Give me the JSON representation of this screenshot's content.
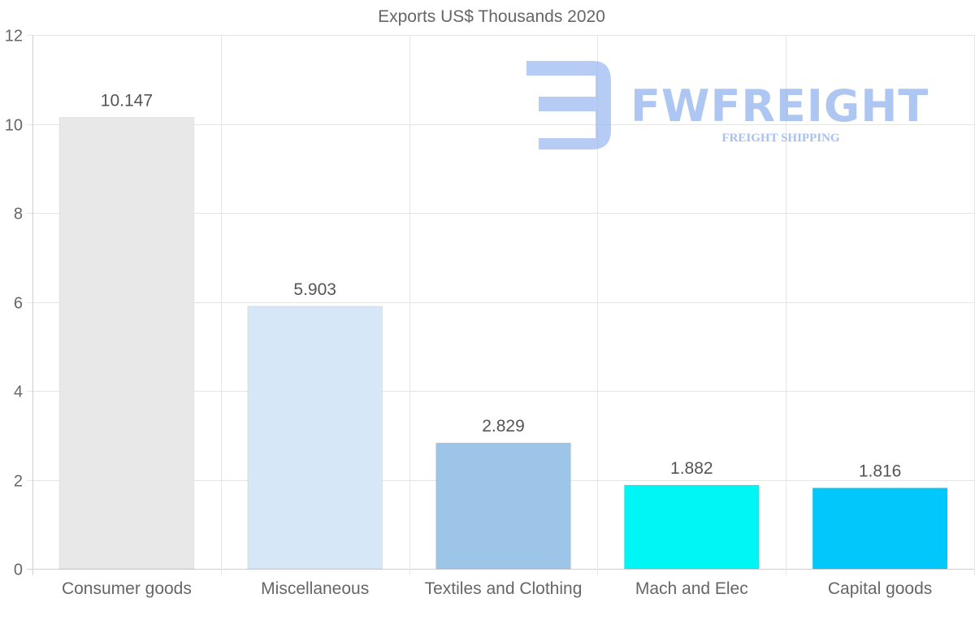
{
  "chart_data": {
    "type": "bar",
    "title": "Exports US$ Thousands 2020",
    "categories": [
      "Consumer goods",
      "Miscellaneous",
      "Textiles and Clothing",
      "Mach and Elec",
      "Capital goods"
    ],
    "values": [
      10.147,
      5.903,
      2.829,
      1.882,
      1.816
    ],
    "value_labels": [
      "10.147",
      "5.903",
      "2.829",
      "1.882",
      "1.816"
    ],
    "colors": [
      "#e8e8e8",
      "#d6e7f8",
      "#9dc5e8",
      "#00f5f5",
      "#00c8fa"
    ],
    "ylim": [
      0,
      12
    ],
    "yticks": [
      0,
      2,
      4,
      6,
      8,
      10,
      12
    ],
    "xlabel": "",
    "ylabel": "",
    "grid": true,
    "legend": "none"
  },
  "watermark": {
    "brand": "FWFREIGHT",
    "tagline": "FREIGHT SHIPPING",
    "color": "#8fb1ee"
  }
}
